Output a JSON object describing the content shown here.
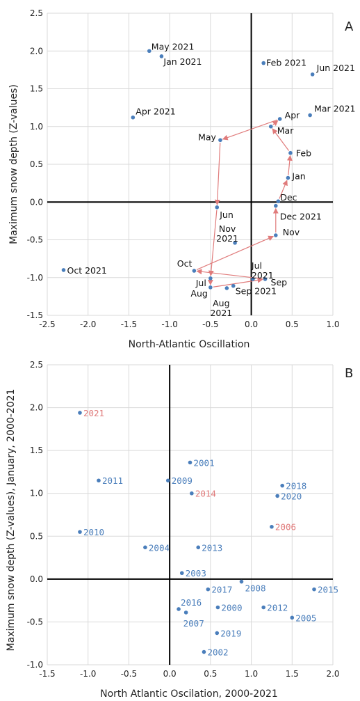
{
  "colors": {
    "point": "#4a7ebb",
    "arrow": "#e07b7b",
    "label_blue": "#4a7ebb",
    "label_red": "#e07b7b",
    "grid": "#d9d9d9",
    "axis": "#000000"
  },
  "chart_data": [
    {
      "panel": "A",
      "type": "scatter",
      "xlabel": "North-Atlantic Oscillation",
      "ylabel": "Maximum snow depth (Z-values)",
      "xlim": [
        -2.5,
        1.0
      ],
      "ylim": [
        -1.5,
        2.5
      ],
      "xticks": [
        "-2.5",
        "-2.0",
        "-1.5",
        "-1.0",
        "-0.5",
        "0.0",
        "0.5",
        "1.0"
      ],
      "yticks": [
        "-1.5",
        "-1.0",
        "-0.5",
        "0.0",
        "0.5",
        "1.0",
        "1.5",
        "2.0",
        "2.5"
      ],
      "grid": true,
      "points": [
        {
          "label": "May 2021",
          "x": -1.25,
          "y": 2.0
        },
        {
          "label": "Jan 2021",
          "x": -1.1,
          "y": 1.93
        },
        {
          "label": "Feb 2021",
          "x": 0.15,
          "y": 1.84
        },
        {
          "label": "Jun 2021",
          "x": 0.75,
          "y": 1.69
        },
        {
          "label": "Apr 2021",
          "x": -1.45,
          "y": 1.12
        },
        {
          "label": "Mar 2021",
          "x": 0.72,
          "y": 1.15
        },
        {
          "label": "Apr",
          "x": 0.35,
          "y": 1.1
        },
        {
          "label": "Mar",
          "x": 0.24,
          "y": 1.0
        },
        {
          "label": "May",
          "x": -0.38,
          "y": 0.82
        },
        {
          "label": "Feb",
          "x": 0.48,
          "y": 0.65
        },
        {
          "label": "Jan",
          "x": 0.45,
          "y": 0.32
        },
        {
          "label": "Dec",
          "x": 0.33,
          "y": 0.01
        },
        {
          "label": "Dec 2021",
          "x": 0.3,
          "y": -0.05
        },
        {
          "label": "Jun",
          "x": -0.42,
          "y": -0.07
        },
        {
          "label": "Nov 2021",
          "x": -0.2,
          "y": -0.54
        },
        {
          "label": "Nov",
          "x": 0.3,
          "y": -0.44
        },
        {
          "label": "Oct 2021",
          "x": -2.3,
          "y": -0.9
        },
        {
          "label": "Oct",
          "x": -0.7,
          "y": -0.91
        },
        {
          "label": "Jul",
          "x": -0.5,
          "y": -1.01
        },
        {
          "label": "Jul 2021",
          "x": 0.02,
          "y": -1.02
        },
        {
          "label": "Sep",
          "x": 0.17,
          "y": -1.02
        },
        {
          "label": "Aug",
          "x": -0.5,
          "y": -1.13
        },
        {
          "label": "Aug 2021",
          "x": -0.3,
          "y": -1.14
        },
        {
          "label": "Sep 2021",
          "x": -0.22,
          "y": -1.11
        }
      ],
      "trajectory": [
        "Dec",
        "Jan",
        "Feb",
        "Mar",
        "Apr",
        "May",
        "Jun",
        "Jul",
        "Aug",
        "Sep",
        "Oct",
        "Nov",
        "Dec 2021"
      ]
    },
    {
      "panel": "B",
      "type": "scatter",
      "xlabel": "North Atlantic Oscilation, 2000-2021",
      "ylabel": "Maximum snow depth (Z-values), January, 2000-2021",
      "xlim": [
        -1.5,
        2.0
      ],
      "ylim": [
        -1.0,
        2.5
      ],
      "xticks": [
        "-1.5",
        "-1.0",
        "-0.5",
        "0.0",
        "0.5",
        "1.0",
        "1.5",
        "2.0"
      ],
      "yticks": [
        "-1.0",
        "-0.5",
        "0.0",
        "0.5",
        "1.0",
        "1.5",
        "2.0",
        "2.5"
      ],
      "grid": true,
      "points": [
        {
          "label": "2021",
          "x": -1.1,
          "y": 1.94,
          "highlight": true
        },
        {
          "label": "2011",
          "x": -0.87,
          "y": 1.15
        },
        {
          "label": "2001",
          "x": 0.25,
          "y": 1.36
        },
        {
          "label": "2009",
          "x": -0.02,
          "y": 1.15
        },
        {
          "label": "2014",
          "x": 0.27,
          "y": 1.0,
          "highlight": true
        },
        {
          "label": "2018",
          "x": 1.38,
          "y": 1.09
        },
        {
          "label": "2020",
          "x": 1.32,
          "y": 0.97
        },
        {
          "label": "2010",
          "x": -1.1,
          "y": 0.55
        },
        {
          "label": "2006",
          "x": 1.25,
          "y": 0.61,
          "highlight": true
        },
        {
          "label": "2004",
          "x": -0.3,
          "y": 0.37
        },
        {
          "label": "2013",
          "x": 0.35,
          "y": 0.37
        },
        {
          "label": "2003",
          "x": 0.15,
          "y": 0.07
        },
        {
          "label": "2008",
          "x": 0.88,
          "y": -0.03
        },
        {
          "label": "2017",
          "x": 0.47,
          "y": -0.12
        },
        {
          "label": "2015",
          "x": 1.77,
          "y": -0.12
        },
        {
          "label": "2016",
          "x": 0.11,
          "y": -0.35
        },
        {
          "label": "2007",
          "x": 0.2,
          "y": -0.39
        },
        {
          "label": "2000",
          "x": 0.59,
          "y": -0.33
        },
        {
          "label": "2012",
          "x": 1.15,
          "y": -0.33
        },
        {
          "label": "2005",
          "x": 1.5,
          "y": -0.45
        },
        {
          "label": "2019",
          "x": 0.58,
          "y": -0.63
        },
        {
          "label": "2002",
          "x": 0.42,
          "y": -0.85
        }
      ]
    }
  ]
}
